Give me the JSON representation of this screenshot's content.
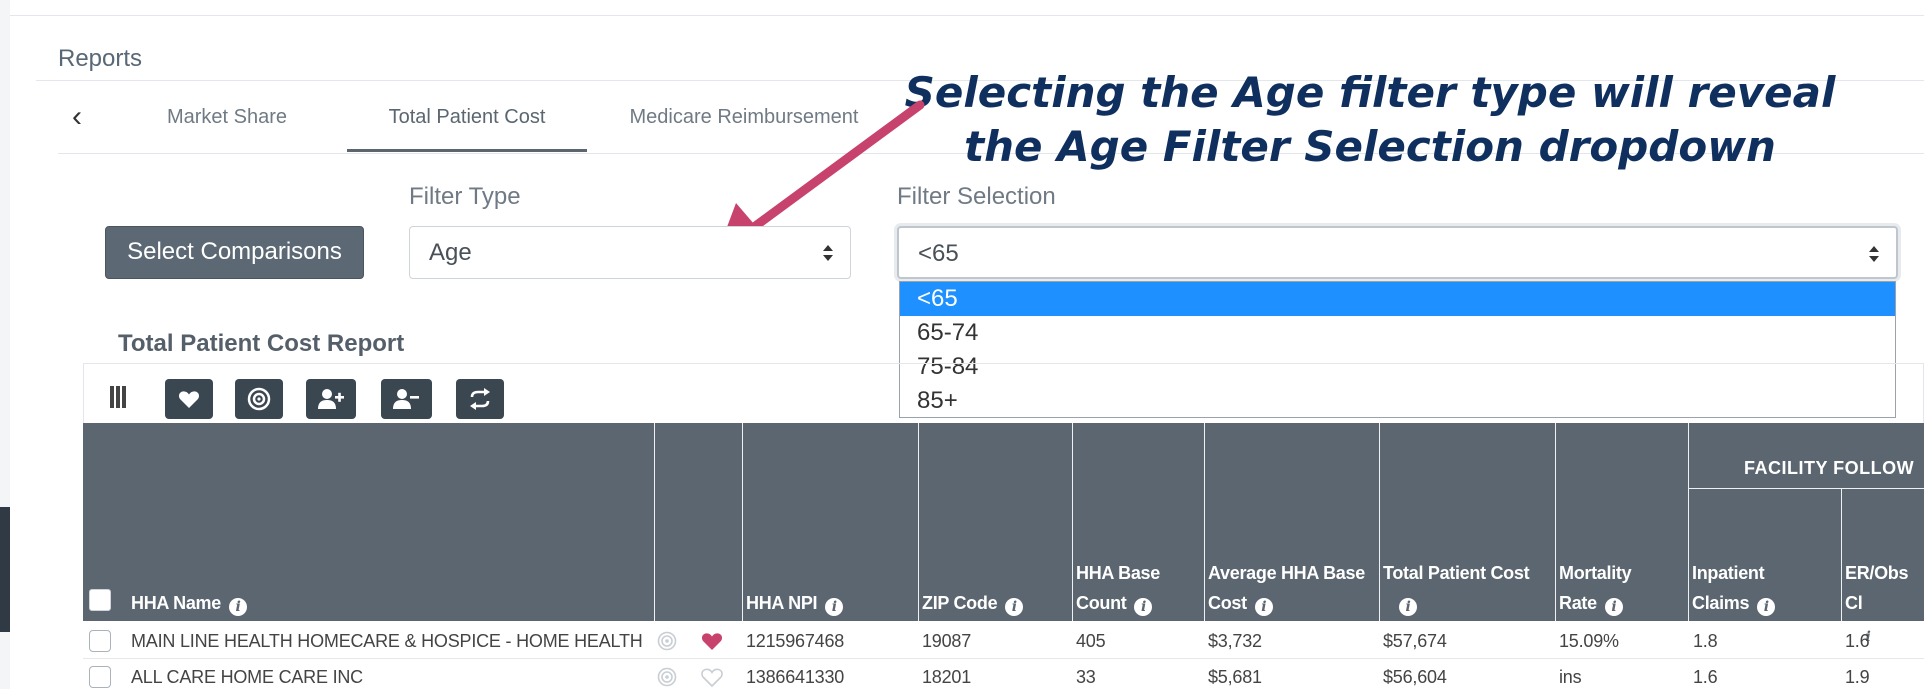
{
  "reports": {
    "title": "Reports"
  },
  "tabs": [
    {
      "label": "Market Share"
    },
    {
      "label": "Total Patient Cost"
    },
    {
      "label": "Medicare Reimbursement"
    }
  ],
  "annotation": {
    "line1": "Selecting the Age filter type will reveal",
    "line2": "the Age Filter Selection dropdown",
    "color": "#0f2f5e",
    "arrow_color": "#c8426e"
  },
  "filters": {
    "compare_button": "Select Comparisons",
    "filter_type_label": "Filter Type",
    "filter_type_value": "Age",
    "filter_selection_label": "Filter Selection",
    "filter_selection_value": "<65",
    "options": [
      "<65",
      "65-74",
      "75-84",
      "85+"
    ]
  },
  "report": {
    "title": "Total Patient Cost Report",
    "toolbar_icons": [
      "columns-icon",
      "heart-icon",
      "target-icon",
      "user-plus-icon",
      "user-minus-icon",
      "refresh-icon"
    ]
  },
  "table": {
    "group_header": "FACILITY FOLLOW",
    "columns": {
      "name": "HHA Name",
      "npi": "HHA NPI",
      "zip": "ZIP Code",
      "base_count_1": "HHA Base",
      "base_count_2": "Count",
      "avg_cost_1": "Average HHA Base",
      "avg_cost_2": "Cost",
      "total_1": "Total Patient Cost",
      "mortality_1": "Mortality",
      "mortality_2": "Rate",
      "inpatient_1": "Inpatient",
      "inpatient_2": "Claims",
      "er_1": "ER/Obs Cl"
    },
    "rows": [
      {
        "name": "MAIN LINE HEALTH HOMECARE & HOSPICE - HOME HEALTH",
        "favorite": true,
        "npi": "1215967468",
        "zip": "19087",
        "base_count": "405",
        "avg_cost": "$3,732",
        "total": "$57,674",
        "mortality": "15.09%",
        "inpatient": "1.8",
        "er": "1.6"
      },
      {
        "name": "ALL CARE HOME CARE INC",
        "favorite": false,
        "npi": "1386641330",
        "zip": "18201",
        "base_count": "33",
        "avg_cost": "$5,681",
        "total": "$56,604",
        "mortality": "ins",
        "inpatient": "1.6",
        "er": "1.9"
      }
    ],
    "heart_color": "#c8426e",
    "header_color": "#5b6670"
  }
}
